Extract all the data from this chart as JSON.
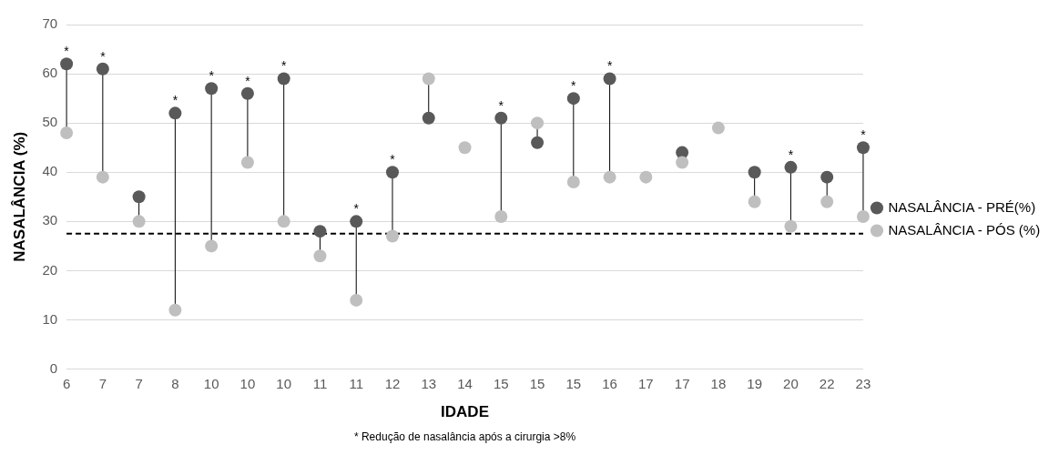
{
  "chart_data": {
    "type": "scatter",
    "xlabel": "IDADE",
    "ylabel": "NASALÂNCIA (%)",
    "categories": [
      "6",
      "7",
      "7",
      "8",
      "10",
      "10",
      "10",
      "11",
      "11",
      "12",
      "13",
      "14",
      "15",
      "15",
      "15",
      "16",
      "17",
      "17",
      "18",
      "19",
      "20",
      "22",
      "23"
    ],
    "series": [
      {
        "name": "NASALÂNCIA - PRÉ(%)",
        "color": "#595959",
        "values": [
          62,
          61,
          35,
          52,
          57,
          56,
          59,
          28,
          30,
          40,
          51,
          null,
          51,
          46,
          55,
          59,
          null,
          44,
          null,
          40,
          41,
          39,
          45
        ],
        "value_labels": [
          "*",
          "*",
          null,
          "*",
          "*",
          "*",
          "*",
          null,
          "*",
          "*",
          null,
          null,
          "*",
          null,
          "*",
          "*",
          null,
          null,
          null,
          null,
          "*",
          null,
          "*"
        ]
      },
      {
        "name": "NASALÂNCIA - PÓS (%)",
        "color": "#bfbfbf",
        "values": [
          48,
          39,
          30,
          12,
          25,
          42,
          30,
          23,
          14,
          27,
          59,
          45,
          31,
          50,
          38,
          39,
          39,
          42,
          49,
          34,
          29,
          34,
          31
        ]
      }
    ],
    "ylim": [
      0,
      70
    ],
    "yticks": [
      0,
      10,
      20,
      30,
      40,
      50,
      60,
      70
    ],
    "grid": "y",
    "legend": "right",
    "marker": "circle",
    "ref_lines": [
      {
        "axis": "y",
        "value": 27.5,
        "color": "#000000",
        "line_style": "dashed"
      }
    ],
    "annotations": [
      "* Redução de nasalância após a cirurgia >8%"
    ]
  }
}
